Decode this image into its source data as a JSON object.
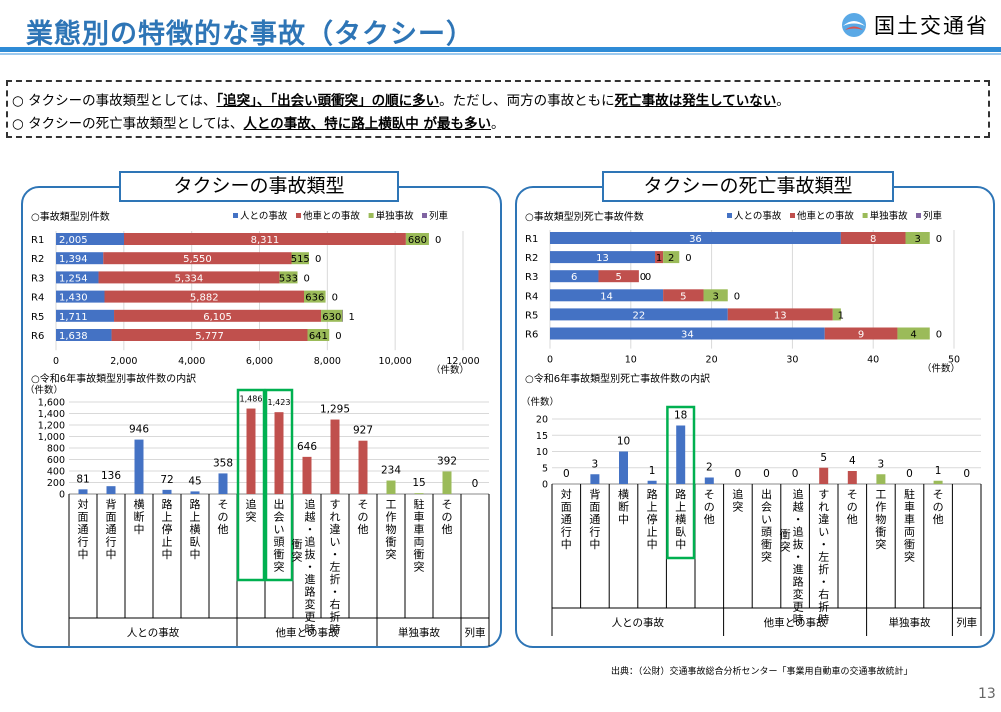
{
  "header": {
    "title": "業態別の特徴的な事故（タクシー）",
    "logo_text": "国土交通省"
  },
  "notes": [
    {
      "bullet": "○",
      "pre": "タクシーの事故類型としては、",
      "bold1": "「追突」、「出会い頭衝突」の順に多い",
      "mid": "。ただし、両方の事故ともに",
      "bold2": "死亡事故は発生していない",
      "post": "。"
    },
    {
      "bullet": "○",
      "pre": "タクシーの死亡事故類型としては、",
      "bold1": "人との事故、特に路上横臥中 が最も多い",
      "post": "。"
    }
  ],
  "panels": {
    "left_title": "タクシーの事故類型",
    "right_title": "タクシーの死亡事故類型"
  },
  "source": "出典：（公財）交通事故総合分析センター「事業用自動車の交通事故統計」",
  "page_number": "13",
  "colors": {
    "human": "#4472c4",
    "vehicle": "#c0504d",
    "single": "#9bbb59",
    "train": "#8064a2",
    "highlight": "#00b050",
    "brand": "#2e75b6"
  },
  "chart_data": [
    {
      "type": "bar",
      "orientation": "horizontal-stacked",
      "title": "○事故類型別件数",
      "categories": [
        "R1",
        "R2",
        "R3",
        "R4",
        "R5",
        "R6"
      ],
      "series": [
        {
          "name": "人との事故",
          "values": [
            2005,
            1394,
            1254,
            1430,
            1711,
            1638
          ],
          "labels": [
            "2,005",
            "1,394",
            "1,254",
            "1,430",
            "1,711",
            "1,638"
          ]
        },
        {
          "name": "他車との事故",
          "values": [
            8311,
            5550,
            5334,
            5882,
            6105,
            5777
          ],
          "labels": [
            "8,311",
            "5,550",
            "5,334",
            "5,882",
            "6,105",
            "5,777"
          ]
        },
        {
          "name": "単独事故",
          "values": [
            680,
            515,
            533,
            636,
            630,
            641
          ],
          "labels": [
            "680",
            "515",
            "533",
            "636",
            "630",
            "641"
          ]
        },
        {
          "name": "列車",
          "values": [
            0,
            0,
            0,
            0,
            1,
            0
          ],
          "labels": [
            "0",
            "0",
            "0",
            "0",
            "1",
            "0"
          ]
        }
      ],
      "xlim": [
        0,
        12000
      ],
      "xticks": [
        "0",
        "2,000",
        "4,000",
        "6,000",
        "8,000",
        "10,000",
        "12,000"
      ],
      "xunit": "（件数）",
      "legend": "top-right"
    },
    {
      "type": "bar",
      "orientation": "horizontal-stacked",
      "title": "○事故類型別死亡事故件数",
      "categories": [
        "R1",
        "R2",
        "R3",
        "R4",
        "R5",
        "R6"
      ],
      "series": [
        {
          "name": "人との事故",
          "values": [
            36,
            13,
            6,
            14,
            22,
            34
          ],
          "labels": [
            "36",
            "13",
            "6",
            "14",
            "22",
            "34"
          ]
        },
        {
          "name": "他車との事故",
          "values": [
            8,
            1,
            5,
            5,
            13,
            9
          ],
          "labels": [
            "8",
            "1",
            "5",
            "5",
            "13",
            "9"
          ]
        },
        {
          "name": "単独事故",
          "values": [
            3,
            2,
            0,
            3,
            1,
            4
          ],
          "labels": [
            "3",
            "2",
            "0",
            "3",
            "1",
            "4"
          ]
        },
        {
          "name": "列車",
          "values": [
            0,
            0,
            0,
            0,
            0,
            0
          ],
          "labels": [
            "0",
            "0",
            "0",
            "0",
            "",
            "0"
          ]
        }
      ],
      "xlim": [
        0,
        50
      ],
      "xticks": [
        "0",
        "10",
        "20",
        "30",
        "40",
        "50"
      ],
      "xunit": "（件数）",
      "legend": "top-right"
    },
    {
      "type": "bar",
      "title": "○令和6年事故類型別事故件数の内訳",
      "yunit": "（件数）",
      "ylim": [
        0,
        1600
      ],
      "yticks": [
        "0",
        "200",
        "400",
        "600",
        "800",
        "1,000",
        "1,200",
        "1,400",
        "1,600"
      ],
      "categories": [
        "対面通行中",
        "背面通行中",
        "横断中",
        "路上停止中",
        "路上横臥中",
        "その他",
        "追突",
        "出会い頭衝突",
        "追越・追抜・進路変更時衝突",
        "すれ違い・左折・右折時",
        "その他",
        "工作物衝突",
        "駐車車両衝突",
        "その他",
        ""
      ],
      "values": [
        81,
        136,
        946,
        72,
        45,
        358,
        1486,
        1423,
        646,
        1295,
        927,
        234,
        15,
        392,
        0
      ],
      "labels": [
        "81",
        "136",
        "946",
        "72",
        "45",
        "358",
        "1,486",
        "1,423",
        "646",
        "1,295",
        "927",
        "234",
        "15",
        "392",
        "0"
      ],
      "groups": [
        "人との事故",
        "人との事故",
        "人との事故",
        "人との事故",
        "人との事故",
        "人との事故",
        "他車との事故",
        "他車との事故",
        "他車との事故",
        "他車との事故",
        "他車との事故",
        "単独事故",
        "単独事故",
        "単独事故",
        "列車"
      ],
      "highlighted": [
        6,
        7
      ]
    },
    {
      "type": "bar",
      "title": "○令和6年事故類型別死亡事故件数の内訳",
      "yunit": "（件数）",
      "ylim": [
        0,
        20
      ],
      "yticks": [
        "0",
        "5",
        "10",
        "15",
        "20"
      ],
      "categories": [
        "対面通行中",
        "背面通行中",
        "横断中",
        "路上停止中",
        "路上横臥中",
        "その他",
        "追突",
        "出会い頭衝突",
        "追越・追抜・進路変更時衝突",
        "すれ違い・左折・右折時",
        "その他",
        "工作物衝突",
        "駐車車両衝突",
        "その他",
        ""
      ],
      "values": [
        0,
        3,
        10,
        1,
        18,
        2,
        0,
        0,
        0,
        5,
        4,
        3,
        0,
        1,
        0
      ],
      "labels": [
        "0",
        "3",
        "10",
        "1",
        "18",
        "2",
        "0",
        "0",
        "0",
        "5",
        "4",
        "3",
        "0",
        "1",
        "0"
      ],
      "groups": [
        "人との事故",
        "人との事故",
        "人との事故",
        "人との事故",
        "人との事故",
        "人との事故",
        "他車との事故",
        "他車との事故",
        "他車との事故",
        "他車との事故",
        "他車との事故",
        "単独事故",
        "単独事故",
        "単独事故",
        "列車"
      ],
      "highlighted": [
        4
      ]
    }
  ]
}
